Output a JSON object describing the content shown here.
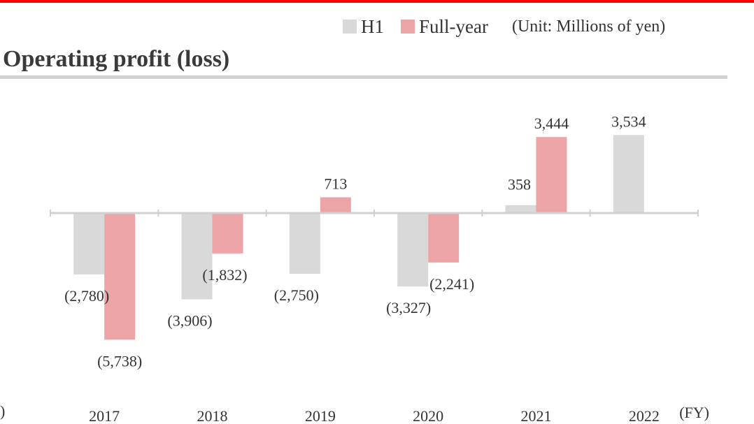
{
  "chart_data": {
    "type": "bar",
    "title": "Operating profit (loss)",
    "unit": "(Unit: Millions of yen)",
    "xlabel": "(FY)",
    "ylabel": "",
    "categories": [
      "2017",
      "2018",
      "2019",
      "2020",
      "2021",
      "2022"
    ],
    "series": [
      {
        "name": "H1",
        "color": "#d9d9d9",
        "values": [
          -2780,
          -3906,
          -2750,
          -3327,
          358,
          3534
        ],
        "labels": [
          "(2,780)",
          "(3,906)",
          "(2,750)",
          "(3,327)",
          "358",
          "3,534"
        ]
      },
      {
        "name": "Full-year",
        "color": "#eda4a7",
        "values": [
          -5738,
          -1832,
          713,
          -2241,
          3444,
          null
        ],
        "labels": [
          "(5,738)",
          "(1,832)",
          "713",
          "(2,241)",
          "3,444",
          ""
        ]
      }
    ],
    "ylim": [
      -6500,
      4500
    ],
    "grid": false,
    "legend": "top-right"
  },
  "edge_text": ")",
  "colors": {
    "top_rule": "#ff0000",
    "axis": "#d0d0d0",
    "text": "#333333"
  }
}
